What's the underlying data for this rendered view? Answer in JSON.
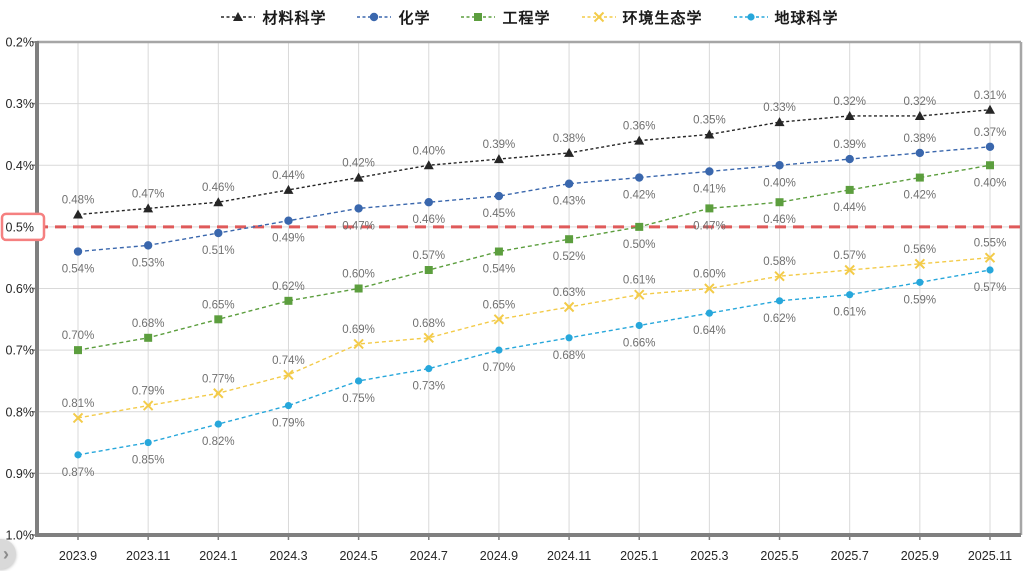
{
  "floating_button": {
    "glyph": "›",
    "icon": "chevron-right-icon"
  },
  "chart_data": {
    "type": "line",
    "title": "",
    "legend_position": "top",
    "grid": true,
    "x_labels": [
      "2023.9",
      "2023.11",
      "2024.1",
      "2024.3",
      "2024.5",
      "2024.7",
      "2024.9",
      "2024.11",
      "2025.1",
      "2025.3",
      "2025.5",
      "2025.7",
      "2025.9",
      "2025.11"
    ],
    "y_axis": {
      "min": 0.2,
      "max": 1.0,
      "step": 0.1,
      "direction": "inverted (values increase downward)",
      "tick_labels": [
        "0.2%",
        "0.3%",
        "0.4%",
        "0.5%",
        "0.6%",
        "0.7%",
        "0.8%",
        "0.9%",
        "1.0%"
      ],
      "highlighted_tick": "0.5%"
    },
    "reference_line": {
      "value": 0.5,
      "label": "0.5%",
      "color": "#DF5A5A",
      "style": "dashed"
    },
    "series": [
      {
        "name": "材料科学",
        "color": "#262626",
        "marker": "triangle",
        "values": [
          0.48,
          0.47,
          0.46,
          0.44,
          0.42,
          0.4,
          0.39,
          0.38,
          0.36,
          0.35,
          0.33,
          0.32,
          0.32,
          0.31
        ],
        "label_sides": [
          "above",
          "above",
          "above",
          "above",
          "above",
          "above",
          "above",
          "above",
          "above",
          "above",
          "above",
          "above",
          "above",
          "above"
        ]
      },
      {
        "name": "化学",
        "color": "#3A67AD",
        "marker": "circle",
        "values": [
          0.54,
          0.53,
          0.51,
          0.49,
          0.47,
          0.46,
          0.45,
          0.43,
          0.42,
          0.41,
          0.4,
          0.39,
          0.38,
          0.37
        ],
        "label_sides": [
          "below",
          "below",
          "below",
          "below",
          "below",
          "below",
          "below",
          "below",
          "below",
          "below",
          "below",
          "above",
          "above",
          "above"
        ]
      },
      {
        "name": "工程学",
        "color": "#5C9E3E",
        "marker": "square",
        "values": [
          0.7,
          0.68,
          0.65,
          0.62,
          0.6,
          0.57,
          0.54,
          0.52,
          0.5,
          0.47,
          0.46,
          0.44,
          0.42,
          0.4
        ],
        "label_sides": [
          "above",
          "above",
          "above",
          "above",
          "above",
          "above",
          "below",
          "below",
          "below",
          "below",
          "below",
          "below",
          "below",
          "below"
        ]
      },
      {
        "name": "环境生态学",
        "color": "#F3CB49",
        "marker": "x",
        "values": [
          0.81,
          0.79,
          0.77,
          0.74,
          0.69,
          0.68,
          0.65,
          0.63,
          0.61,
          0.6,
          0.58,
          0.57,
          0.56,
          0.55
        ],
        "label_sides": [
          "above",
          "above",
          "above",
          "above",
          "above",
          "above",
          "above",
          "above",
          "above",
          "above",
          "above",
          "above",
          "above",
          "above"
        ]
      },
      {
        "name": "地球科学",
        "color": "#27A7DB",
        "marker": "circle-small",
        "values": [
          0.87,
          0.85,
          0.82,
          0.79,
          0.75,
          0.73,
          0.7,
          0.68,
          0.66,
          0.64,
          0.62,
          0.61,
          0.59,
          0.57
        ],
        "label_sides": [
          "below",
          "below",
          "below",
          "below",
          "below",
          "below",
          "below",
          "below",
          "below",
          "below",
          "below",
          "below",
          "below",
          "below"
        ]
      }
    ],
    "data_label_format": "0.00%",
    "colors": {
      "data_label": "#707070",
      "axis_label": "#262626",
      "gridline": "#D9D9D9",
      "border": "#A6A6A6",
      "axis": "#7F7F7F",
      "highlight_box_border": "#F58080",
      "background": "#FFFFFF"
    }
  }
}
